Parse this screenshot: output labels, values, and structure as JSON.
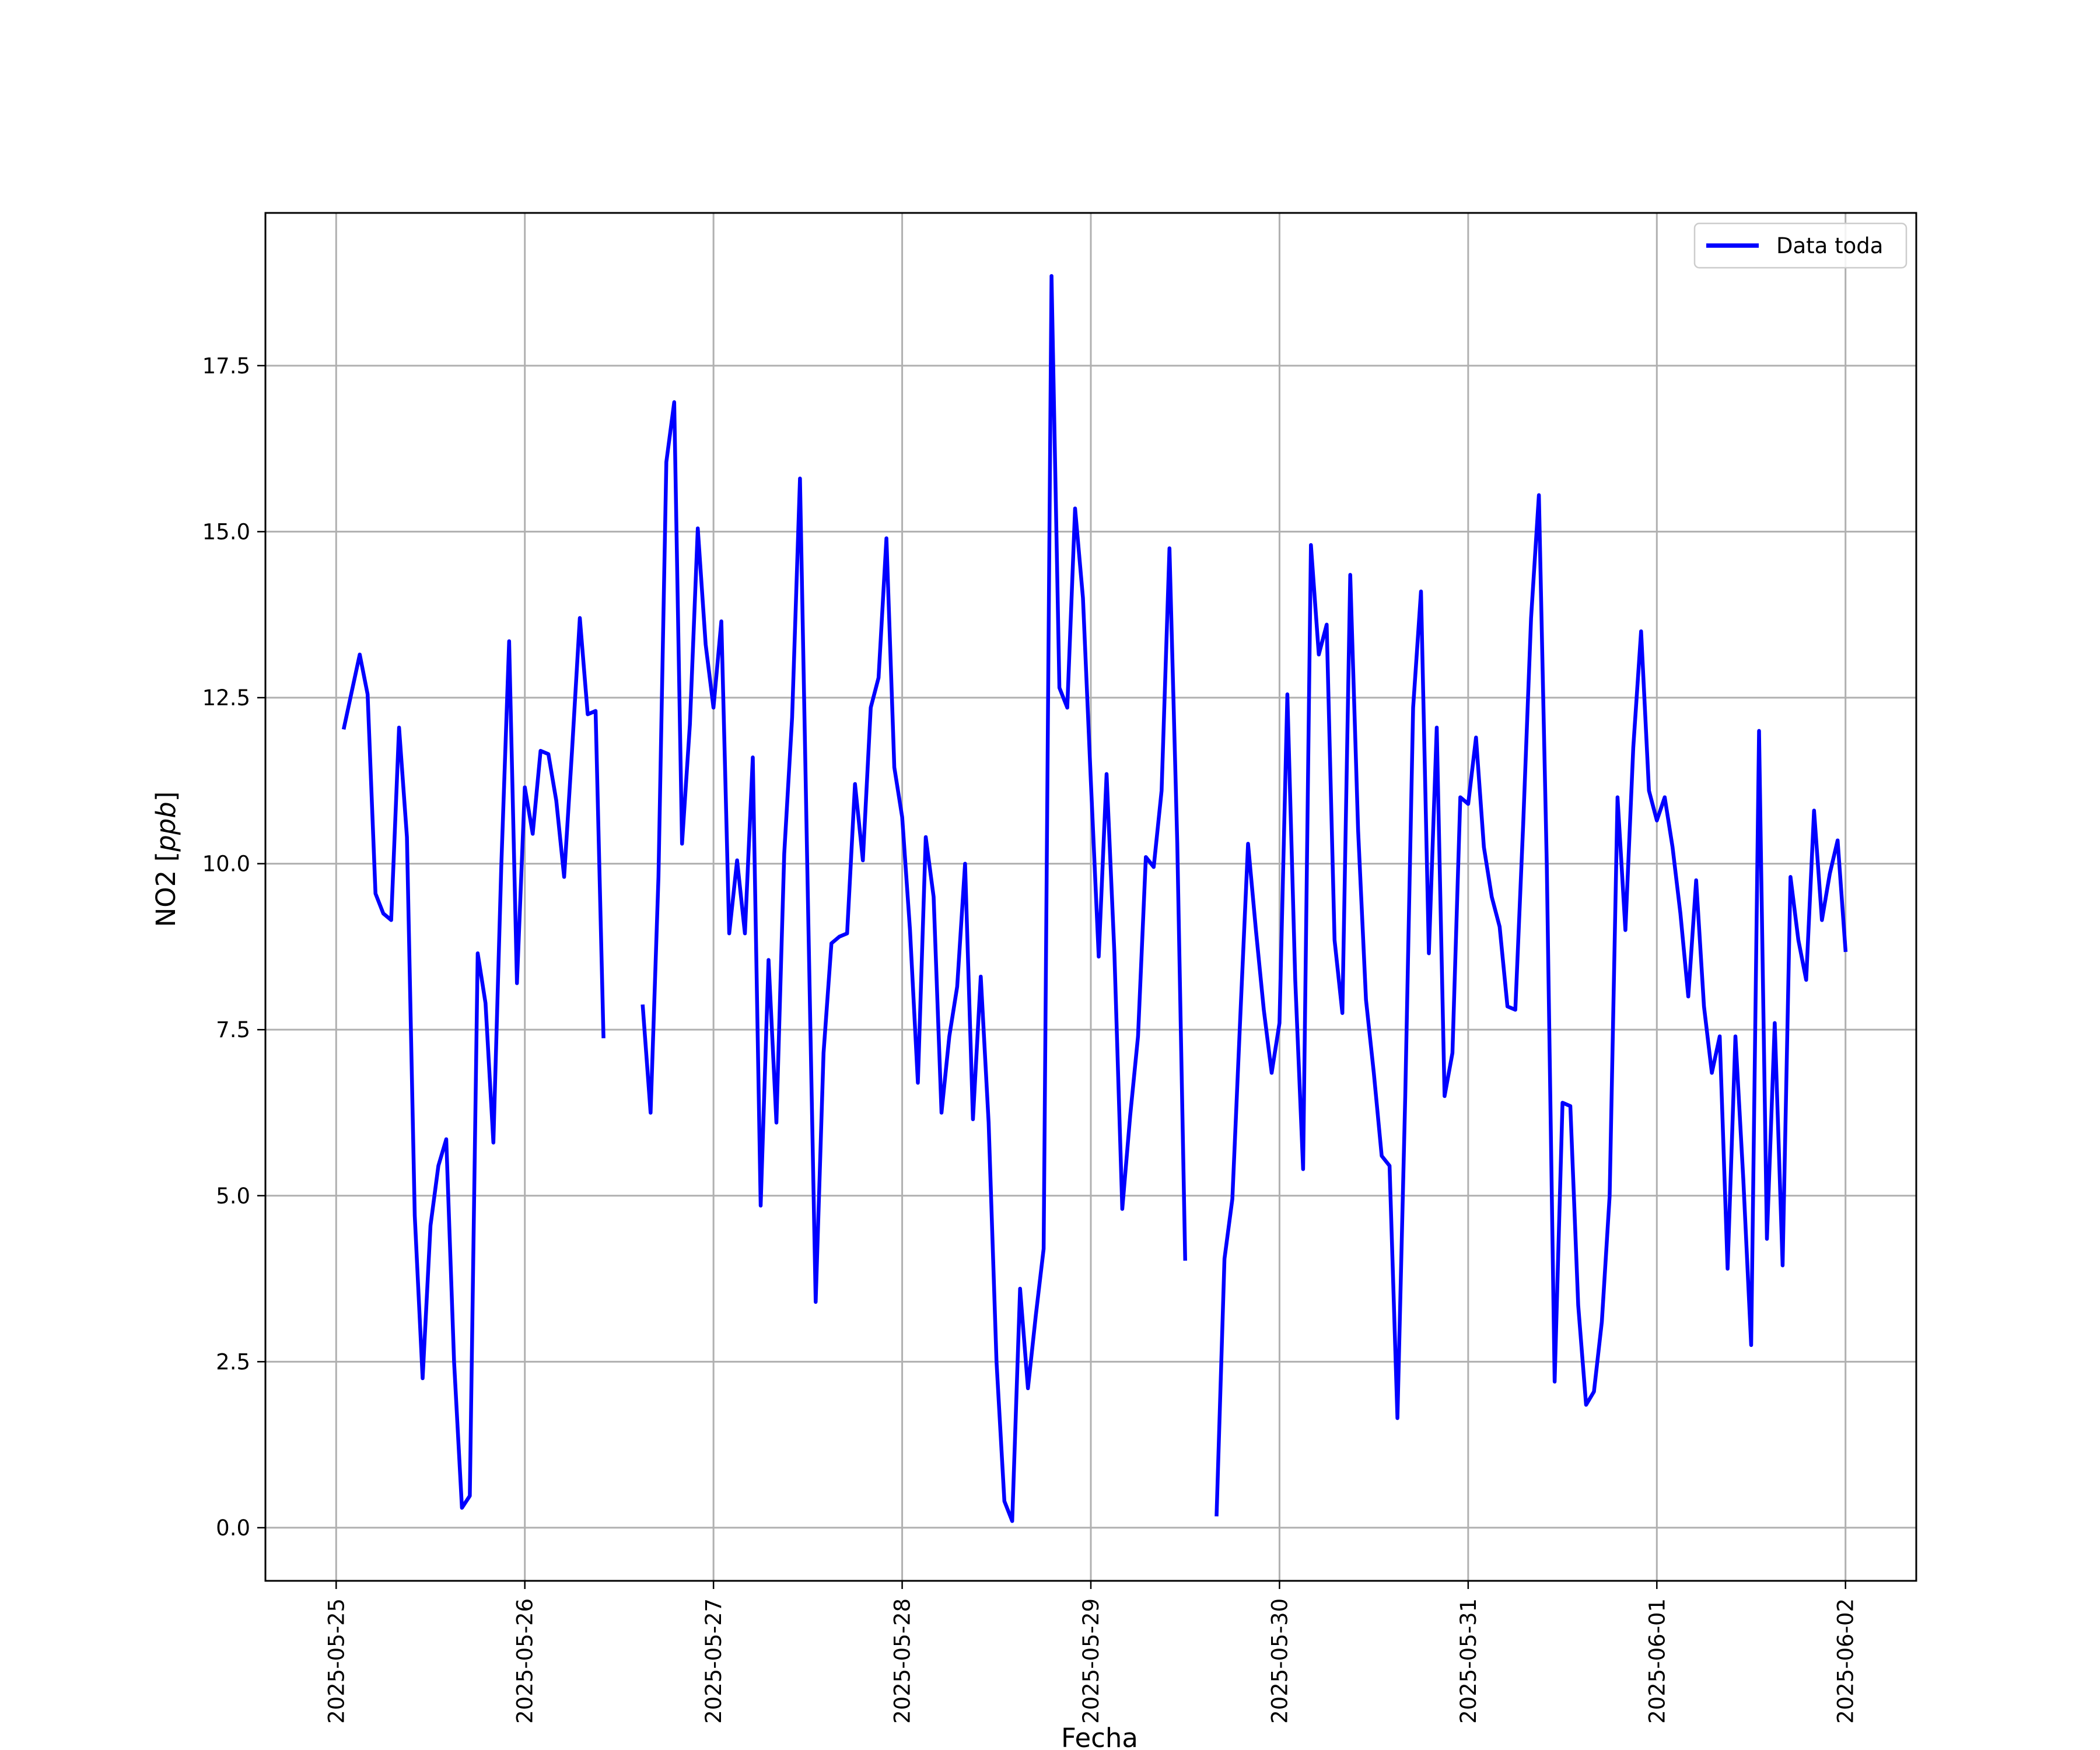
{
  "chart_data": {
    "type": "line",
    "xlabel": "Fecha",
    "ylabel_main": "NO2 [",
    "ylabel_italic": "ppb",
    "ylabel_end": "]",
    "xlim": [
      "2025-05-24T15:00",
      "2025-06-02T09:00"
    ],
    "ylim": [
      -0.8,
      19.8
    ],
    "x_ticks": [
      "2025-05-25",
      "2025-05-26",
      "2025-05-27",
      "2025-05-28",
      "2025-05-29",
      "2025-05-30",
      "2025-05-31",
      "2025-06-01",
      "2025-06-02"
    ],
    "y_ticks": [
      0.0,
      2.5,
      5.0,
      7.5,
      10.0,
      12.5,
      15.0,
      17.5
    ],
    "y_tick_labels": [
      "0.0",
      "2.5",
      "5.0",
      "7.5",
      "10.0",
      "12.5",
      "15.0",
      "17.5"
    ],
    "grid": true,
    "legend_position": "top-right",
    "series": [
      {
        "name": "Data toda",
        "color": "#0000ff",
        "x": [
          "2025-05-25T01:00",
          "2025-05-25T02:00",
          "2025-05-25T03:00",
          "2025-05-25T04:00",
          "2025-05-25T05:00",
          "2025-05-25T06:00",
          "2025-05-25T07:00",
          "2025-05-25T08:00",
          "2025-05-25T09:00",
          "2025-05-25T10:00",
          "2025-05-25T11:00",
          "2025-05-25T12:00",
          "2025-05-25T13:00",
          "2025-05-25T14:00",
          "2025-05-25T15:00",
          "2025-05-25T16:00",
          "2025-05-25T17:00",
          "2025-05-25T18:00",
          "2025-05-25T19:00",
          "2025-05-25T20:00",
          "2025-05-25T21:00",
          "2025-05-25T22:00",
          "2025-05-25T23:00",
          "2025-05-26T00:00",
          "2025-05-26T01:00",
          "2025-05-26T02:00",
          "2025-05-26T03:00",
          "2025-05-26T04:00",
          "2025-05-26T05:00",
          "2025-05-26T06:00",
          "2025-05-26T07:00",
          "2025-05-26T08:00",
          "2025-05-26T09:00",
          "2025-05-26T10:00",
          null,
          "2025-05-26T15:00",
          "2025-05-26T16:00",
          "2025-05-26T17:00",
          "2025-05-26T18:00",
          "2025-05-26T19:00",
          "2025-05-26T20:00",
          "2025-05-26T21:00",
          "2025-05-26T22:00",
          "2025-05-26T23:00",
          "2025-05-27T00:00",
          "2025-05-27T01:00",
          "2025-05-27T02:00",
          "2025-05-27T03:00",
          "2025-05-27T04:00",
          "2025-05-27T05:00",
          "2025-05-27T06:00",
          "2025-05-27T07:00",
          "2025-05-27T08:00",
          "2025-05-27T09:00",
          "2025-05-27T10:00",
          "2025-05-27T11:00",
          "2025-05-27T12:00",
          "2025-05-27T13:00",
          "2025-05-27T14:00",
          "2025-05-27T15:00",
          "2025-05-27T16:00",
          "2025-05-27T17:00",
          "2025-05-27T18:00",
          "2025-05-27T19:00",
          "2025-05-27T20:00",
          "2025-05-27T21:00",
          "2025-05-27T22:00",
          "2025-05-27T23:00",
          "2025-05-28T00:00",
          "2025-05-28T01:00",
          "2025-05-28T02:00",
          "2025-05-28T03:00",
          "2025-05-28T04:00",
          "2025-05-28T05:00",
          "2025-05-28T06:00",
          "2025-05-28T07:00",
          "2025-05-28T08:00",
          "2025-05-28T09:00",
          "2025-05-28T10:00",
          "2025-05-28T11:00",
          "2025-05-28T12:00",
          "2025-05-28T13:00",
          "2025-05-28T14:00",
          "2025-05-28T15:00",
          "2025-05-28T16:00",
          "2025-05-28T17:00",
          "2025-05-28T18:00",
          "2025-05-28T19:00",
          "2025-05-28T20:00",
          "2025-05-28T21:00",
          "2025-05-28T22:00",
          "2025-05-28T23:00",
          "2025-05-29T00:00",
          "2025-05-29T01:00",
          "2025-05-29T02:00",
          "2025-05-29T03:00",
          "2025-05-29T04:00",
          "2025-05-29T05:00",
          "2025-05-29T06:00",
          "2025-05-29T07:00",
          "2025-05-29T08:00",
          "2025-05-29T09:00",
          "2025-05-29T10:00",
          "2025-05-29T11:00",
          "2025-05-29T12:00",
          null,
          "2025-05-29T16:00",
          "2025-05-29T17:00",
          "2025-05-29T18:00",
          "2025-05-29T19:00",
          "2025-05-29T20:00",
          "2025-05-29T21:00",
          "2025-05-29T22:00",
          "2025-05-29T23:00",
          "2025-05-30T00:00",
          "2025-05-30T01:00",
          "2025-05-30T02:00",
          "2025-05-30T03:00",
          "2025-05-30T04:00",
          "2025-05-30T05:00",
          "2025-05-30T06:00",
          "2025-05-30T07:00",
          "2025-05-30T08:00",
          "2025-05-30T09:00",
          "2025-05-30T10:00",
          "2025-05-30T11:00",
          "2025-05-30T12:00",
          "2025-05-30T13:00",
          "2025-05-30T14:00",
          "2025-05-30T15:00",
          "2025-05-30T16:00",
          "2025-05-30T17:00",
          "2025-05-30T18:00",
          "2025-05-30T19:00",
          "2025-05-30T20:00",
          "2025-05-30T21:00",
          "2025-05-30T22:00",
          "2025-05-30T23:00",
          "2025-05-31T00:00",
          "2025-05-31T01:00",
          "2025-05-31T02:00",
          "2025-05-31T03:00",
          "2025-05-31T04:00",
          "2025-05-31T05:00",
          "2025-05-31T06:00",
          "2025-05-31T07:00",
          "2025-05-31T08:00",
          "2025-05-31T09:00",
          "2025-05-31T10:00",
          "2025-05-31T11:00",
          "2025-05-31T12:00",
          "2025-05-31T13:00",
          "2025-05-31T14:00",
          "2025-05-31T15:00",
          "2025-05-31T16:00",
          "2025-05-31T17:00",
          "2025-05-31T18:00",
          "2025-05-31T19:00",
          "2025-05-31T20:00",
          "2025-05-31T21:00",
          "2025-05-31T22:00",
          "2025-05-31T23:00",
          "2025-06-01T00:00",
          "2025-06-01T01:00",
          "2025-06-01T02:00",
          "2025-06-01T03:00",
          "2025-06-01T04:00",
          "2025-06-01T05:00",
          "2025-06-01T06:00",
          "2025-06-01T07:00",
          "2025-06-01T08:00",
          "2025-06-01T09:00",
          "2025-06-01T10:00",
          "2025-06-01T11:00",
          "2025-06-01T12:00",
          "2025-06-01T13:00",
          "2025-06-01T14:00",
          "2025-06-01T15:00",
          "2025-06-01T16:00",
          "2025-06-01T17:00",
          "2025-06-01T18:00",
          "2025-06-01T19:00",
          "2025-06-01T20:00",
          "2025-06-01T21:00",
          "2025-06-01T22:00",
          "2025-06-01T23:00",
          "2025-06-02T00:00"
        ],
        "y": [
          12.05,
          12.6,
          13.15,
          12.55,
          9.55,
          9.25,
          9.15,
          12.05,
          10.4,
          4.7,
          2.25,
          4.55,
          5.45,
          5.85,
          2.5,
          0.3,
          0.48,
          8.65,
          7.9,
          5.8,
          9.95,
          13.35,
          8.2,
          11.15,
          10.45,
          11.7,
          11.65,
          10.95,
          9.8,
          11.7,
          13.7,
          12.25,
          12.3,
          7.4,
          null,
          7.85,
          6.25,
          9.8,
          16.05,
          16.95,
          10.3,
          12.1,
          15.05,
          13.3,
          12.35,
          13.65,
          8.95,
          10.05,
          8.95,
          11.6,
          4.85,
          8.55,
          6.1,
          10.15,
          12.2,
          15.8,
          9.5,
          3.4,
          7.15,
          8.8,
          8.9,
          8.95,
          11.2,
          10.05,
          12.35,
          12.8,
          14.9,
          11.45,
          10.7,
          9.0,
          6.7,
          10.4,
          9.5,
          6.25,
          7.4,
          8.15,
          10.0,
          6.15,
          8.3,
          6.1,
          2.5,
          0.4,
          0.1,
          3.6,
          2.1,
          3.2,
          4.2,
          18.85,
          12.65,
          12.35,
          15.35,
          14.0,
          11.25,
          8.6,
          11.35,
          8.65,
          4.8,
          6.2,
          7.4,
          10.1,
          9.95,
          11.1,
          14.75,
          10.3,
          4.05,
          null,
          0.2,
          4.05,
          4.95,
          7.65,
          10.3,
          9.0,
          7.8,
          6.85,
          7.6,
          12.55,
          8.25,
          5.4,
          14.8,
          13.15,
          13.6,
          8.85,
          7.75,
          14.35,
          10.5,
          7.95,
          6.85,
          5.6,
          5.45,
          1.65,
          6.5,
          12.35,
          14.1,
          8.65,
          12.05,
          6.5,
          7.15,
          11.0,
          10.9,
          11.9,
          10.25,
          9.5,
          9.05,
          7.85,
          7.8,
          10.6,
          13.7,
          15.55,
          10.0,
          2.2,
          6.4,
          6.35,
          3.35,
          1.85,
          2.05,
          3.1,
          5.0,
          11.0,
          9.0,
          11.75,
          13.5,
          11.1,
          10.65,
          11.0,
          10.25,
          9.25,
          8.0,
          9.75,
          7.85,
          6.85,
          7.4,
          3.9,
          7.4,
          5.25,
          2.75,
          12.0,
          4.35,
          7.6,
          3.95,
          9.8,
          8.85,
          8.25,
          10.8,
          9.15,
          9.85,
          10.35,
          8.7
        ]
      }
    ]
  }
}
